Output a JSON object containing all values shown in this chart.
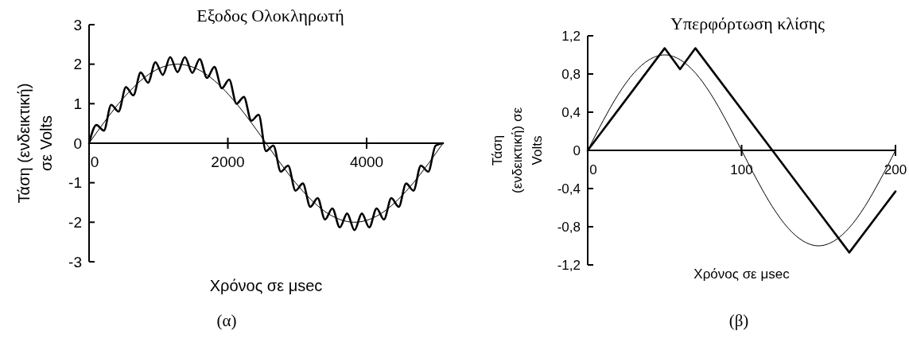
{
  "chart_data": [
    {
      "type": "line",
      "title": "Εξοδος Ολοκληρωτή",
      "xlabel": "Χρόνος σε μsec",
      "ylabel": "Τάση (ενδεικτική)\nσε Volts",
      "annotations": [
        "(α)"
      ],
      "xlim": [
        0,
        5100
      ],
      "xticks": [
        0,
        2000,
        4000
      ],
      "ylim": [
        -3,
        3
      ],
      "yticks": [
        -3,
        -2,
        -1,
        0,
        1,
        2,
        3
      ],
      "grid": false,
      "marker": "none",
      "series": [
        {
          "color": "#000000",
          "x": [
            0,
            106,
            213,
            319,
            425,
            531,
            638,
            744,
            850,
            956,
            1063,
            1169,
            1275,
            1381,
            1488,
            1594,
            1700,
            1806,
            1913,
            2019,
            2125,
            2231,
            2338,
            2444,
            2550,
            2656,
            2763,
            2869,
            2975,
            3081,
            3188,
            3294,
            3400,
            3506,
            3613,
            3719,
            3825,
            3931,
            4038,
            4144,
            4250,
            4356,
            4463,
            4569,
            4675,
            4781,
            4888,
            4994,
            5100
          ],
          "values": [
            0,
            0.46,
            0.32,
            0.97,
            0.8,
            1.42,
            1.21,
            1.79,
            1.53,
            2.05,
            1.73,
            2.18,
            1.8,
            2.18,
            1.78,
            2.13,
            1.65,
            1.93,
            1.39,
            1.61,
            1.0,
            1.17,
            0.57,
            0.72,
            -0.2,
            -0.06,
            -0.72,
            -0.57,
            -1.2,
            -1.02,
            -1.61,
            -1.39,
            -1.93,
            -1.65,
            -2.13,
            -1.78,
            -2.2,
            -1.78,
            -2.13,
            -1.65,
            -1.93,
            -1.39,
            -1.61,
            -1.02,
            -1.2,
            -0.57,
            -0.72,
            -0.06,
            0
          ]
        },
        {
          "color": "#000000",
          "x": [
            0,
            213,
            425,
            638,
            850,
            1063,
            1275,
            1488,
            1700,
            1913,
            2125,
            2338,
            2550,
            2763,
            2975,
            3188,
            3400,
            3613,
            3825,
            4038,
            4250,
            4463,
            4675,
            4888,
            5100
          ],
          "values": [
            0,
            0.52,
            1.0,
            1.41,
            1.73,
            1.93,
            2.0,
            1.93,
            1.73,
            1.41,
            1.0,
            0.52,
            0,
            -0.52,
            -1.0,
            -1.41,
            -1.73,
            -1.93,
            -2.0,
            -1.93,
            -1.73,
            -1.41,
            -1.0,
            -0.52,
            0
          ]
        }
      ]
    },
    {
      "type": "line",
      "title": "Υπερφόρτωση κλίσης",
      "xlabel": "Χρόνος σε μsec",
      "ylabel": "Τάση\n(ενδεικτική) σε\nVolts",
      "annotations": [
        "(β)"
      ],
      "xlim": [
        0,
        200
      ],
      "xticks": [
        0,
        100,
        200
      ],
      "ylim": [
        -1.2,
        1.2
      ],
      "yticks": [
        {
          "value": -1.2,
          "label": "-1,2"
        },
        {
          "value": -0.8,
          "label": "-0,8"
        },
        {
          "value": -0.4,
          "label": "-0,4"
        },
        0,
        {
          "value": 0.4,
          "label": "0,4"
        },
        {
          "value": 0.8,
          "label": "0,8"
        },
        {
          "value": 1.2,
          "label": "1,2"
        }
      ],
      "grid": false,
      "marker": "none",
      "series": [
        {
          "color": "#000000",
          "x": [
            0,
            50,
            60,
            70,
            170,
            200
          ],
          "values": [
            0,
            1.07,
            0.85,
            1.07,
            -1.07,
            -0.43
          ]
        },
        {
          "color": "#000000",
          "x": [
            0,
            10,
            20,
            30,
            40,
            50,
            60,
            70,
            80,
            90,
            100,
            110,
            120,
            130,
            140,
            150,
            160,
            170,
            180,
            190,
            200
          ],
          "values": [
            0,
            0.31,
            0.59,
            0.81,
            0.95,
            1,
            0.95,
            0.81,
            0.59,
            0.31,
            0,
            -0.31,
            -0.59,
            -0.81,
            -0.95,
            -1,
            -0.95,
            -0.81,
            -0.59,
            -0.31,
            0
          ]
        }
      ]
    }
  ]
}
